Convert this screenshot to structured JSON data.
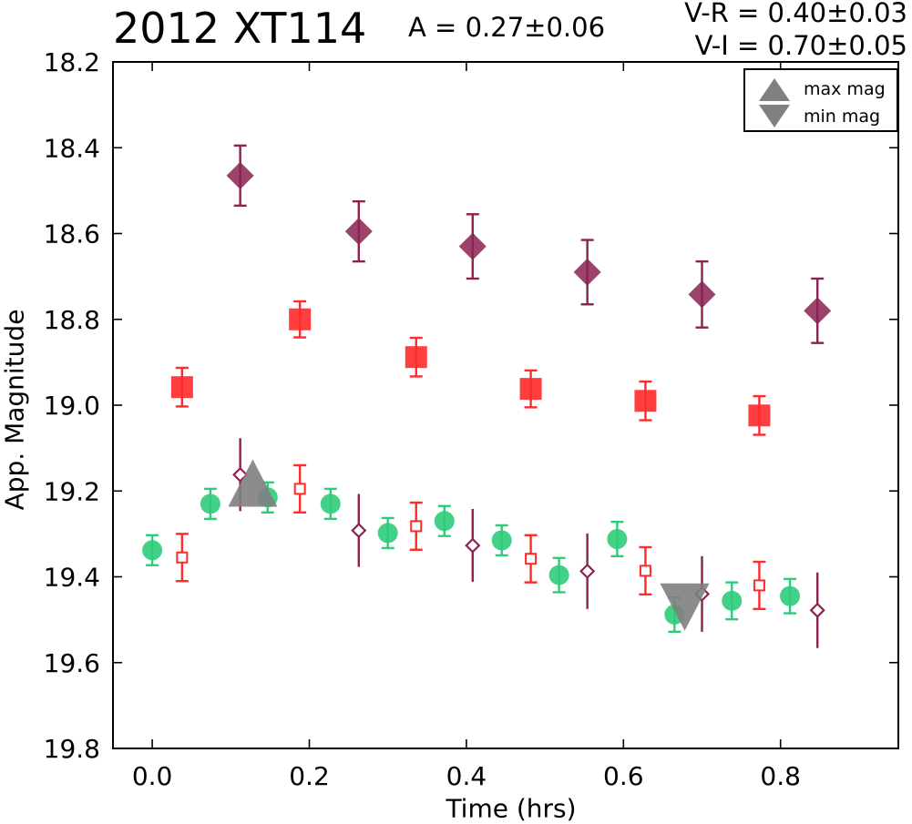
{
  "header": {
    "title": "2012 XT114",
    "amplitude": "A  = 0.27±0.06",
    "color_vr": "V-R = 0.40±0.03",
    "color_vi": "V-I  = 0.70±0.05"
  },
  "legend": {
    "entries": [
      {
        "label": "max mag",
        "marker": "triangle-up",
        "color": "#808080"
      },
      {
        "label": "min mag",
        "marker": "triangle-down",
        "color": "#808080"
      }
    ]
  },
  "chart_data": {
    "type": "scatter",
    "title": "2012 XT114",
    "xlabel": "Time (hrs)",
    "ylabel": "App. Magnitude",
    "xlim": [
      -0.05,
      0.95
    ],
    "ylim": [
      18.2,
      19.8
    ],
    "y_inverted": true,
    "x_ticks": [
      "0.0",
      "0.2",
      "0.4",
      "0.6",
      "0.8"
    ],
    "y_ticks": [
      "18.2",
      "18.4",
      "18.6",
      "18.8",
      "19.0",
      "19.2",
      "19.4",
      "19.6",
      "19.8"
    ],
    "grid": false,
    "legend_position": "top-right",
    "series": [
      {
        "marker": "diamond-filled",
        "color": "#8b2252",
        "points": [
          {
            "x": 0.112,
            "y": 18.465,
            "err": 0.07
          },
          {
            "x": 0.263,
            "y": 18.595,
            "err": 0.07
          },
          {
            "x": 0.408,
            "y": 18.63,
            "err": 0.075
          },
          {
            "x": 0.554,
            "y": 18.69,
            "err": 0.075
          },
          {
            "x": 0.7,
            "y": 18.742,
            "err": 0.077
          },
          {
            "x": 0.847,
            "y": 18.78,
            "err": 0.075
          }
        ]
      },
      {
        "marker": "square-filled",
        "color": "#ff2a2a",
        "points": [
          {
            "x": 0.038,
            "y": 18.958,
            "err": 0.045
          },
          {
            "x": 0.188,
            "y": 18.8,
            "err": 0.042
          },
          {
            "x": 0.336,
            "y": 18.888,
            "err": 0.045
          },
          {
            "x": 0.482,
            "y": 18.962,
            "err": 0.043
          },
          {
            "x": 0.628,
            "y": 18.99,
            "err": 0.045
          },
          {
            "x": 0.773,
            "y": 19.024,
            "err": 0.045
          }
        ]
      },
      {
        "marker": "circle-filled",
        "color": "#2ecc7a",
        "points": [
          {
            "x": 0.0,
            "y": 19.338,
            "err": 0.035
          },
          {
            "x": 0.074,
            "y": 19.23,
            "err": 0.035
          },
          {
            "x": 0.147,
            "y": 19.215,
            "err": 0.035
          },
          {
            "x": 0.227,
            "y": 19.23,
            "err": 0.035
          },
          {
            "x": 0.3,
            "y": 19.298,
            "err": 0.035
          },
          {
            "x": 0.372,
            "y": 19.27,
            "err": 0.035
          },
          {
            "x": 0.445,
            "y": 19.315,
            "err": 0.035
          },
          {
            "x": 0.518,
            "y": 19.396,
            "err": 0.04
          },
          {
            "x": 0.592,
            "y": 19.312,
            "err": 0.04
          },
          {
            "x": 0.665,
            "y": 19.488,
            "err": 0.04
          },
          {
            "x": 0.738,
            "y": 19.456,
            "err": 0.043
          },
          {
            "x": 0.812,
            "y": 19.445,
            "err": 0.04
          }
        ]
      },
      {
        "marker": "square-open",
        "color": "#ff2a2a",
        "points": [
          {
            "x": 0.038,
            "y": 19.355,
            "err": 0.055
          },
          {
            "x": 0.188,
            "y": 19.195,
            "err": 0.055
          },
          {
            "x": 0.336,
            "y": 19.282,
            "err": 0.055
          },
          {
            "x": 0.482,
            "y": 19.358,
            "err": 0.055
          },
          {
            "x": 0.628,
            "y": 19.386,
            "err": 0.055
          },
          {
            "x": 0.773,
            "y": 19.42,
            "err": 0.055
          }
        ]
      },
      {
        "marker": "diamond-open",
        "color": "#8b2252",
        "points": [
          {
            "x": 0.112,
            "y": 19.162,
            "err": 0.085
          },
          {
            "x": 0.263,
            "y": 19.292,
            "err": 0.085
          },
          {
            "x": 0.408,
            "y": 19.327,
            "err": 0.085
          },
          {
            "x": 0.554,
            "y": 19.387,
            "err": 0.088
          },
          {
            "x": 0.7,
            "y": 19.44,
            "err": 0.088
          },
          {
            "x": 0.847,
            "y": 19.478,
            "err": 0.088
          }
        ]
      }
    ],
    "annotations": [
      {
        "type": "max mag",
        "marker": "triangle-up",
        "x": 0.128,
        "y": 19.19,
        "color": "#808080"
      },
      {
        "type": "min mag",
        "marker": "triangle-down",
        "x": 0.678,
        "y": 19.462,
        "color": "#808080"
      }
    ]
  }
}
